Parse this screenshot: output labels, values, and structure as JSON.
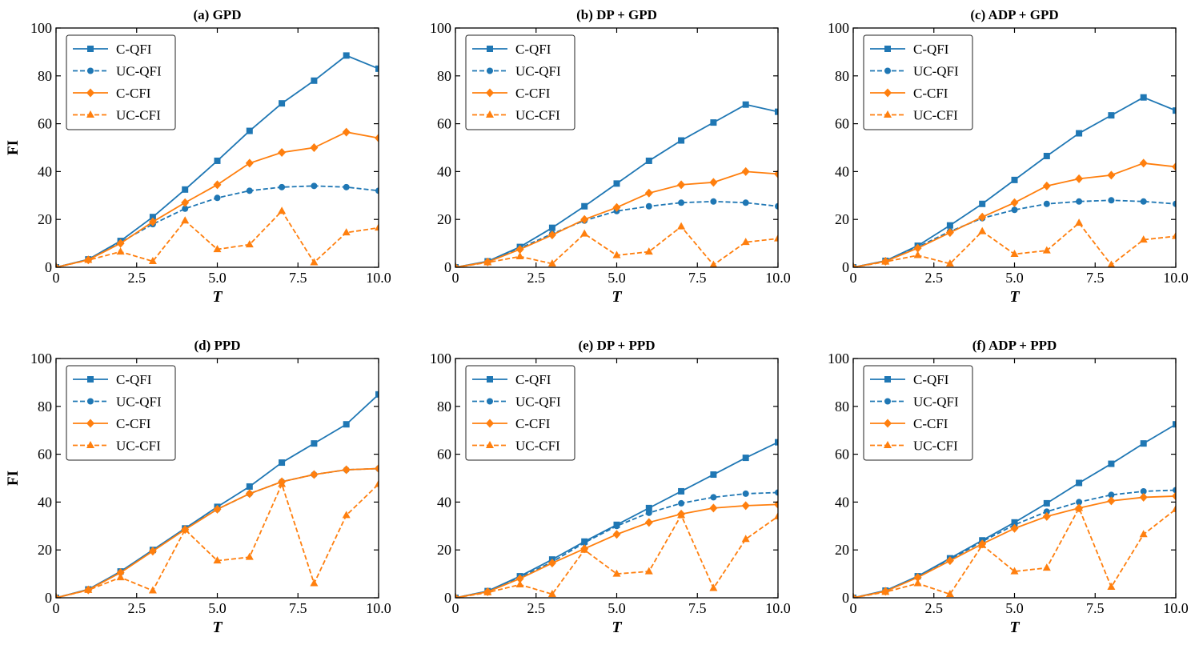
{
  "figure": {
    "series_styles": [
      {
        "name": "C-QFI",
        "color": "#1f77b4",
        "dashed": false,
        "marker": "square"
      },
      {
        "name": "UC-QFI",
        "color": "#1f77b4",
        "dashed": true,
        "marker": "circle"
      },
      {
        "name": "C-CFI",
        "color": "#ff7f0e",
        "dashed": false,
        "marker": "diamond"
      },
      {
        "name": "UC-CFI",
        "color": "#ff7f0e",
        "dashed": true,
        "marker": "triangle"
      }
    ]
  },
  "chart_data": [
    {
      "type": "line",
      "title": "(a) GPD",
      "xlabel": "T",
      "ylabel": "FI",
      "xlim": [
        0,
        10
      ],
      "ylim": [
        0,
        100
      ],
      "x_ticks": [
        "0",
        "2.5",
        "5.0",
        "7.5",
        "10.0"
      ],
      "y_ticks": [
        "0",
        "20",
        "40",
        "60",
        "80",
        "100"
      ],
      "legend_position": "top-left",
      "x": [
        0,
        1,
        2,
        3,
        4,
        5,
        6,
        7,
        8,
        9,
        10
      ],
      "series": [
        {
          "name": "C-QFI",
          "values": [
            0,
            3.3,
            11,
            21,
            32.5,
            44.5,
            57,
            68.5,
            78,
            88.5,
            83
          ]
        },
        {
          "name": "UC-QFI",
          "values": [
            0,
            3.2,
            10.5,
            18,
            24.5,
            29,
            32,
            33.5,
            34,
            33.5,
            32
          ]
        },
        {
          "name": "C-CFI",
          "values": [
            0,
            3.1,
            10,
            19,
            27,
            34.5,
            43.5,
            48,
            50,
            56.5,
            54
          ]
        },
        {
          "name": "UC-CFI",
          "values": [
            0,
            3,
            6.5,
            2.5,
            19.5,
            7.5,
            9.5,
            23.5,
            2,
            14.5,
            16.5
          ]
        }
      ]
    },
    {
      "type": "line",
      "title": "(b) DP + GPD",
      "xlabel": "T",
      "ylabel": "",
      "xlim": [
        0,
        10
      ],
      "ylim": [
        0,
        100
      ],
      "x_ticks": [
        "0",
        "2.5",
        "5.0",
        "7.5",
        "10.0"
      ],
      "y_ticks": [
        "0",
        "20",
        "40",
        "60",
        "80",
        "100"
      ],
      "legend_position": "top-left",
      "x": [
        0,
        1,
        2,
        3,
        4,
        5,
        6,
        7,
        8,
        9,
        10
      ],
      "series": [
        {
          "name": "C-QFI",
          "values": [
            0,
            2.5,
            8.5,
            16.5,
            25.5,
            35,
            44.5,
            53,
            60.5,
            68,
            65
          ]
        },
        {
          "name": "UC-QFI",
          "values": [
            0,
            2.3,
            8,
            14,
            19.5,
            23.5,
            25.5,
            27,
            27.5,
            27,
            25.5
          ]
        },
        {
          "name": "C-CFI",
          "values": [
            0,
            2.2,
            7.5,
            13.5,
            20,
            25,
            31,
            34.5,
            35.5,
            40,
            39
          ]
        },
        {
          "name": "UC-CFI",
          "values": [
            0,
            2,
            4.5,
            1.5,
            14,
            5,
            6.5,
            17,
            1,
            10.5,
            12
          ]
        }
      ]
    },
    {
      "type": "line",
      "title": "(c) ADP + GPD",
      "xlabel": "T",
      "ylabel": "",
      "xlim": [
        0,
        10
      ],
      "ylim": [
        0,
        100
      ],
      "x_ticks": [
        "0",
        "2.5",
        "5.0",
        "7.5",
        "10.0"
      ],
      "y_ticks": [
        "0",
        "20",
        "40",
        "60",
        "80",
        "100"
      ],
      "legend_position": "top-left",
      "x": [
        0,
        1,
        2,
        3,
        4,
        5,
        6,
        7,
        8,
        9,
        10
      ],
      "series": [
        {
          "name": "C-QFI",
          "values": [
            0,
            2.7,
            9,
            17.5,
            26.5,
            36.5,
            46.5,
            56,
            63.5,
            71,
            65.5
          ]
        },
        {
          "name": "UC-QFI",
          "values": [
            0,
            2.6,
            8.5,
            15,
            20.5,
            24,
            26.5,
            27.5,
            28,
            27.5,
            26.5
          ]
        },
        {
          "name": "C-CFI",
          "values": [
            0,
            2.5,
            8,
            14.5,
            21,
            27,
            34,
            37,
            38.5,
            43.5,
            42
          ]
        },
        {
          "name": "UC-CFI",
          "values": [
            0,
            2.3,
            5,
            1.5,
            15,
            5.5,
            7,
            18.5,
            1,
            11.5,
            13
          ]
        }
      ]
    },
    {
      "type": "line",
      "title": "(d) PPD",
      "xlabel": "T",
      "ylabel": "FI",
      "xlim": [
        0,
        10
      ],
      "ylim": [
        0,
        100
      ],
      "x_ticks": [
        "0",
        "2.5",
        "5.0",
        "7.5",
        "10.0"
      ],
      "y_ticks": [
        "0",
        "20",
        "40",
        "60",
        "80",
        "100"
      ],
      "legend_position": "top-left",
      "x": [
        0,
        1,
        2,
        3,
        4,
        5,
        6,
        7,
        8,
        9,
        10
      ],
      "series": [
        {
          "name": "C-QFI",
          "values": [
            0,
            3.5,
            11,
            20,
            29,
            38,
            46.5,
            56.5,
            64.5,
            72.5,
            85
          ]
        },
        {
          "name": "UC-QFI",
          "values": [
            0,
            3.4,
            10.8,
            19.8,
            28.8,
            37,
            43.5,
            48.5,
            51.5,
            53.5,
            54
          ]
        },
        {
          "name": "C-CFI",
          "values": [
            0,
            3.3,
            10.5,
            19.5,
            28.5,
            37,
            43.5,
            48.5,
            51.5,
            53.5,
            54
          ]
        },
        {
          "name": "UC-CFI",
          "values": [
            0,
            3.2,
            8.5,
            3,
            28.5,
            15.5,
            17,
            47.5,
            6,
            34.5,
            47.5
          ]
        }
      ]
    },
    {
      "type": "line",
      "title": "(e) DP + PPD",
      "xlabel": "T",
      "ylabel": "",
      "xlim": [
        0,
        10
      ],
      "ylim": [
        0,
        100
      ],
      "x_ticks": [
        "0",
        "2.5",
        "5.0",
        "7.5",
        "10.0"
      ],
      "y_ticks": [
        "0",
        "20",
        "40",
        "60",
        "80",
        "100"
      ],
      "legend_position": "top-left",
      "x": [
        0,
        1,
        2,
        3,
        4,
        5,
        6,
        7,
        8,
        9,
        10
      ],
      "series": [
        {
          "name": "C-QFI",
          "values": [
            0,
            2.8,
            9,
            16,
            23.5,
            30.5,
            37.5,
            44.5,
            51.5,
            58.5,
            65
          ]
        },
        {
          "name": "UC-QFI",
          "values": [
            0,
            2.7,
            8.5,
            15,
            23,
            30,
            35.5,
            39.5,
            42,
            43.5,
            44
          ]
        },
        {
          "name": "C-CFI",
          "values": [
            0,
            2.5,
            8,
            14.5,
            20.5,
            26.5,
            31.5,
            35,
            37.5,
            38.5,
            39
          ]
        },
        {
          "name": "UC-CFI",
          "values": [
            0,
            2.2,
            5.5,
            1.5,
            20,
            10,
            11,
            34.5,
            4,
            24.5,
            34
          ]
        }
      ]
    },
    {
      "type": "line",
      "title": "(f) ADP + PPD",
      "xlabel": "T",
      "ylabel": "",
      "xlim": [
        0,
        10
      ],
      "ylim": [
        0,
        100
      ],
      "x_ticks": [
        "0",
        "2.5",
        "5.0",
        "7.5",
        "10.0"
      ],
      "y_ticks": [
        "0",
        "20",
        "40",
        "60",
        "80",
        "100"
      ],
      "legend_position": "top-left",
      "x": [
        0,
        1,
        2,
        3,
        4,
        5,
        6,
        7,
        8,
        9,
        10
      ],
      "series": [
        {
          "name": "C-QFI",
          "values": [
            0,
            3,
            9,
            16.5,
            24,
            31.5,
            39.5,
            48,
            56,
            64.5,
            72.5
          ]
        },
        {
          "name": "UC-QFI",
          "values": [
            0,
            2.9,
            8.8,
            16,
            23.5,
            30.5,
            36,
            40,
            43,
            44.5,
            45
          ]
        },
        {
          "name": "C-CFI",
          "values": [
            0,
            2.7,
            8.5,
            15.5,
            22.5,
            29,
            34,
            37.5,
            40.5,
            42,
            42.5
          ]
        },
        {
          "name": "UC-CFI",
          "values": [
            0,
            2.4,
            6,
            1.5,
            22,
            11,
            12.5,
            37.5,
            4.5,
            26.5,
            37
          ]
        }
      ]
    }
  ]
}
